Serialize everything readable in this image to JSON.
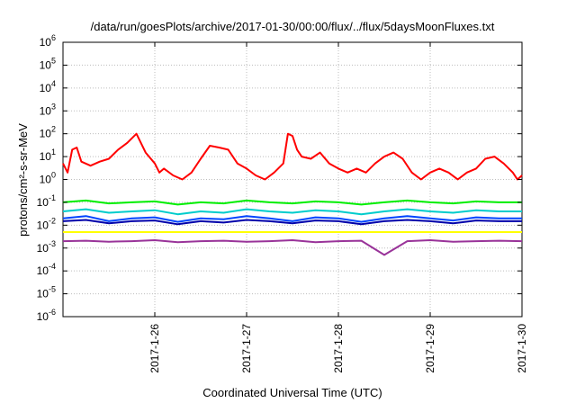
{
  "chart_data": {
    "type": "line",
    "title": "/data/run/goesPlots/archive/2017-01-30/00:00/flux/../flux/5daysMoonFluxes.txt",
    "xlabel": "Coordinated Universal Time (UTC)",
    "ylabel": "protons/cm²-s-sr-MeV",
    "yscale": "log",
    "ylim_exponent": [
      -6,
      6
    ],
    "y_tick_base": "10",
    "y_tick_exponents": [
      "-6",
      "-5",
      "-4",
      "-3",
      "-2",
      "-1",
      "0",
      "1",
      "2",
      "3",
      "4",
      "5",
      "6"
    ],
    "xlim": [
      "2017-01-25 00:00",
      "2017-01-30 00:00"
    ],
    "x_ticks": [
      "2017-1-26",
      "2017-1-27",
      "2017-1-28",
      "2017-1-29",
      "2017-1-30"
    ],
    "grid": true,
    "series": [
      {
        "color": "#ff0000",
        "x_days": [
          0,
          0.05,
          0.1,
          0.15,
          0.2,
          0.3,
          0.4,
          0.5,
          0.6,
          0.7,
          0.8,
          0.9,
          1.0,
          1.05,
          1.1,
          1.2,
          1.3,
          1.4,
          1.5,
          1.6,
          1.7,
          1.8,
          1.9,
          2.0,
          2.1,
          2.2,
          2.3,
          2.4,
          2.45,
          2.5,
          2.55,
          2.6,
          2.7,
          2.8,
          2.9,
          3.0,
          3.1,
          3.2,
          3.3,
          3.4,
          3.5,
          3.6,
          3.7,
          3.8,
          3.9,
          4.0,
          4.1,
          4.2,
          4.3,
          4.4,
          4.5,
          4.6,
          4.7,
          4.8,
          4.9,
          4.95,
          5.0
        ],
        "values": [
          5,
          2,
          20,
          25,
          6,
          4,
          6,
          8,
          20,
          40,
          100,
          15,
          5,
          2,
          3,
          1.5,
          1,
          2,
          8,
          30,
          25,
          20,
          5,
          3,
          1.5,
          1,
          2,
          5,
          100,
          80,
          20,
          10,
          8,
          15,
          5,
          3,
          2,
          3,
          2,
          5,
          10,
          15,
          8,
          2,
          1,
          2,
          3,
          2,
          1,
          2,
          3,
          8,
          10,
          5,
          2,
          1,
          1.5
        ]
      },
      {
        "color": "#00ee00",
        "x_days": [
          0,
          0.25,
          0.5,
          0.75,
          1,
          1.25,
          1.5,
          1.75,
          2,
          2.25,
          2.5,
          2.75,
          3,
          3.25,
          3.5,
          3.75,
          4,
          4.25,
          4.5,
          4.75,
          5
        ],
        "values": [
          0.1,
          0.12,
          0.09,
          0.1,
          0.11,
          0.08,
          0.1,
          0.09,
          0.12,
          0.1,
          0.09,
          0.11,
          0.1,
          0.08,
          0.1,
          0.12,
          0.1,
          0.09,
          0.11,
          0.1,
          0.1
        ]
      },
      {
        "color": "#00cccc",
        "x_days": [
          0,
          0.25,
          0.5,
          0.75,
          1,
          1.25,
          1.5,
          1.75,
          2,
          2.25,
          2.5,
          2.75,
          3,
          3.25,
          3.5,
          3.75,
          4,
          4.25,
          4.5,
          4.75,
          5
        ],
        "values": [
          0.04,
          0.05,
          0.035,
          0.04,
          0.045,
          0.03,
          0.04,
          0.035,
          0.05,
          0.04,
          0.035,
          0.045,
          0.04,
          0.03,
          0.04,
          0.05,
          0.04,
          0.035,
          0.045,
          0.04,
          0.04
        ]
      },
      {
        "color": "#0044ff",
        "x_days": [
          0,
          0.25,
          0.5,
          0.75,
          1,
          1.25,
          1.5,
          1.75,
          2,
          2.25,
          2.5,
          2.75,
          3,
          3.25,
          3.5,
          3.75,
          4,
          4.25,
          4.5,
          4.75,
          5
        ],
        "values": [
          0.02,
          0.025,
          0.015,
          0.02,
          0.022,
          0.014,
          0.02,
          0.018,
          0.025,
          0.02,
          0.015,
          0.022,
          0.02,
          0.014,
          0.02,
          0.025,
          0.02,
          0.016,
          0.022,
          0.02,
          0.02
        ]
      },
      {
        "color": "#0000aa",
        "x_days": [
          0,
          0.25,
          0.5,
          0.75,
          1,
          1.25,
          1.5,
          1.75,
          2,
          2.25,
          2.5,
          2.75,
          3,
          3.25,
          3.5,
          3.75,
          4,
          4.25,
          4.5,
          4.75,
          5
        ],
        "values": [
          0.015,
          0.017,
          0.012,
          0.015,
          0.016,
          0.011,
          0.015,
          0.013,
          0.017,
          0.015,
          0.012,
          0.016,
          0.015,
          0.011,
          0.015,
          0.017,
          0.015,
          0.012,
          0.016,
          0.015,
          0.015
        ]
      },
      {
        "color": "#ffff00",
        "x_days": [
          0,
          1,
          2,
          3,
          4,
          5
        ],
        "values": [
          0.005,
          0.005,
          0.005,
          0.005,
          0.005,
          0.005
        ]
      },
      {
        "color": "#993399",
        "x_days": [
          0,
          0.25,
          0.5,
          0.75,
          1,
          1.25,
          1.5,
          1.75,
          2,
          2.25,
          2.5,
          2.75,
          3,
          3.25,
          3.5,
          3.75,
          4,
          4.25,
          4.5,
          4.75,
          5
        ],
        "values": [
          0.002,
          0.0021,
          0.0019,
          0.002,
          0.0022,
          0.0018,
          0.002,
          0.0021,
          0.0019,
          0.002,
          0.0022,
          0.0018,
          0.002,
          0.0021,
          0.0005,
          0.002,
          0.0022,
          0.0019,
          0.002,
          0.0021,
          0.002
        ]
      }
    ]
  }
}
